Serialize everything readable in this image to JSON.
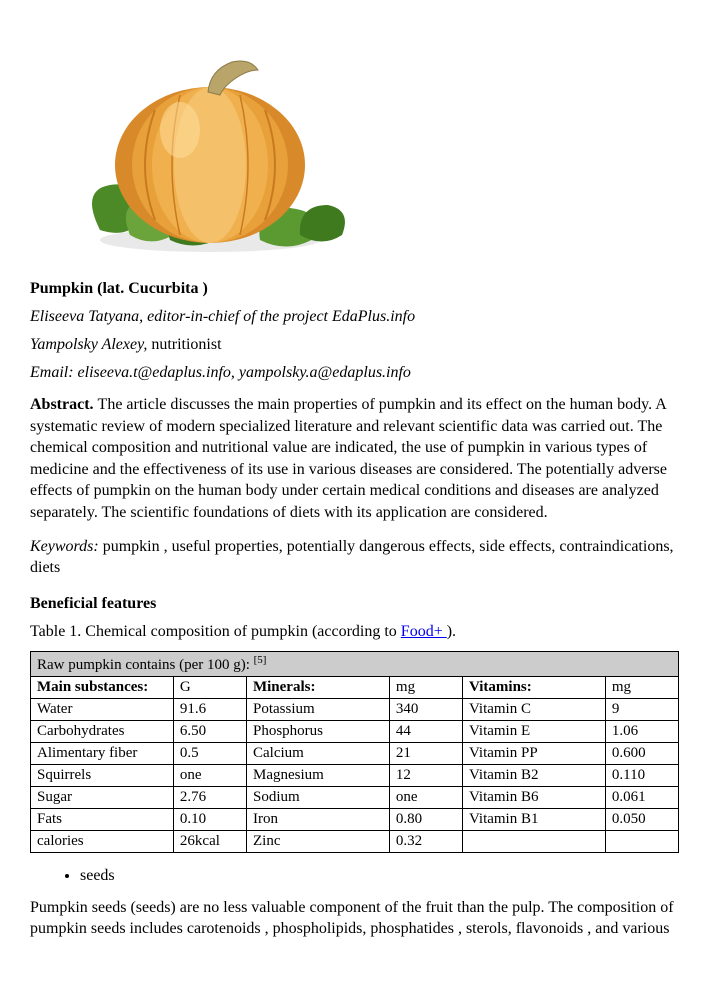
{
  "image": {
    "pumpkin_fill": "#e8a03a",
    "pumpkin_highlight": "#f4c06a",
    "pumpkin_shadow": "#c97a20",
    "stem_color": "#b9a46a",
    "leaf_light": "#6aa43a",
    "leaf_dark": "#3f7a1f"
  },
  "title": "Pumpkin (lat. Cucurbita )",
  "author1": {
    "name": "Eliseeva Tatyana, ",
    "role": "editor-in-chief of the project EdaPlus.info"
  },
  "author2": {
    "name": "Yampolsky Alexey, ",
    "role": "nutritionist"
  },
  "email": "Email: eliseeva.t@edaplus.info, yampolsky.a@edaplus.info",
  "abstract": {
    "label": "Abstract. ",
    "text": "The article discusses the main properties of pumpkin and its effect on the human body. A systematic review of modern specialized literature and relevant scientific data was carried out. The chemical composition and nutritional value are indicated, the use of pumpkin in various types of medicine and the effectiveness of its use in various diseases are considered. The potentially adverse effects of pumpkin on the human body under certain medical conditions and diseases are analyzed separately. The scientific foundations of diets with its application are considered."
  },
  "keywords": {
    "label": "Keywords: ",
    "text": "pumpkin , useful properties, potentially dangerous effects, side effects, contraindications, diets"
  },
  "section_heading": "Beneficial features",
  "table_caption": {
    "prefix": "Table 1. Chemical composition of pumpkin (according to ",
    "link": "Food+ ",
    "suffix": ")."
  },
  "table": {
    "header_cell": {
      "text": "Raw pumpkin contains (per 100 g): ",
      "sup": "[5]"
    },
    "columns": {
      "c1": "Main substances:",
      "c2": "G",
      "c3": "Minerals:",
      "c4": "mg",
      "c5": "Vitamins:",
      "c6": "mg"
    },
    "rows": [
      {
        "c1": "Water",
        "c2": "91.6",
        "c3": "Potassium",
        "c4": "340",
        "c5": "Vitamin C",
        "c6": "9"
      },
      {
        "c1": "Carbohydrates",
        "c2": "6.50",
        "c3": "Phosphorus",
        "c4": "44",
        "c5": "Vitamin E",
        "c6": "1.06"
      },
      {
        "c1": "Alimentary fiber",
        "c2": "0.5",
        "c3": "Calcium",
        "c4": "21",
        "c5": "Vitamin PP",
        "c6": "0.600"
      },
      {
        "c1": "Squirrels",
        "c2": "one",
        "c3": "Magnesium",
        "c4": "12",
        "c5": "Vitamin B2",
        "c6": "0.110"
      },
      {
        "c1": "Sugar",
        "c2": "2.76",
        "c3": "Sodium",
        "c4": "one",
        "c5": "Vitamin B6",
        "c6": "0.061"
      },
      {
        "c1": "Fats",
        "c2": "0.10",
        "c3": "Iron",
        "c4": "0.80",
        "c5": "Vitamin B1",
        "c6": "0.050"
      },
      {
        "c1": "calories",
        "c2": "26kcal",
        "c3": "Zinc",
        "c4": "0.32",
        "c5": "",
        "c6": ""
      }
    ]
  },
  "bullet_item": "seeds",
  "paragraph": "Pumpkin seeds (seeds) are no less valuable component of the fruit than the pulp. The composition of pumpkin seeds includes carotenoids , phospholipids, phosphatides , sterols, flavonoids , and various"
}
